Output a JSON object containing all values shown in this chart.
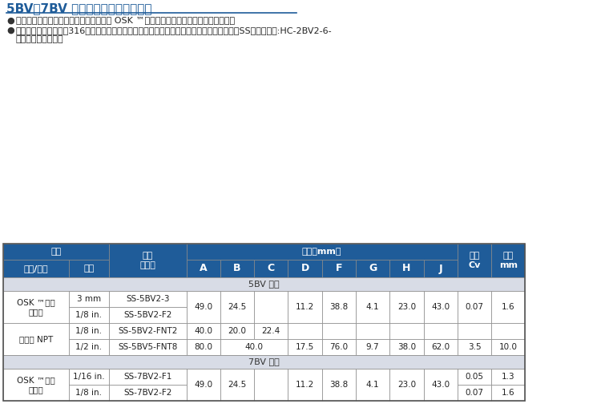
{
  "title": "5BV、7BV 系列订购信息和尺寸数据",
  "title_color": "#1F5C99",
  "bullet1": "尺寸仅供参考，可能有变动。所示尺寸是 OSK ™卡套管接头螺母用手指拧紧时的尺寸。",
  "bullet2_line1": "基本订购号指定材质为316不锈钢。选择特殊材质时，在基本订购号中用相应的材质代码取代SS即可。示例:HC-2BV2-6-",
  "bullet2_line2": "（哈氏合金材质）。",
  "header_bg": "#1F5C99",
  "header_text": "#FFFFFF",
  "section_bg": "#D8DCE6",
  "row_bg": "#FFFFFF",
  "fig_bg": "#FFFFFF",
  "border_color": "#AAAAAA",
  "text_color": "#222222"
}
